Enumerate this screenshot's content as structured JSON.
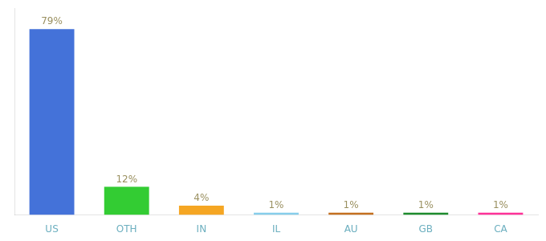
{
  "chart_data": {
    "type": "bar",
    "categories": [
      "US",
      "OTH",
      "IN",
      "IL",
      "AU",
      "GB",
      "CA"
    ],
    "values": [
      79,
      12,
      4,
      1,
      1,
      1,
      1
    ],
    "value_labels": [
      "79%",
      "12%",
      "4%",
      "1%",
      "1%",
      "1%",
      "1%"
    ],
    "data_labels": true,
    "colors": [
      "#4472d9",
      "#33cc33",
      "#f5a623",
      "#87ceeb",
      "#c47020",
      "#1e8c2e",
      "#ff3399"
    ],
    "ylim": [
      0,
      88
    ],
    "tick_labels": "x",
    "grid": false
  }
}
